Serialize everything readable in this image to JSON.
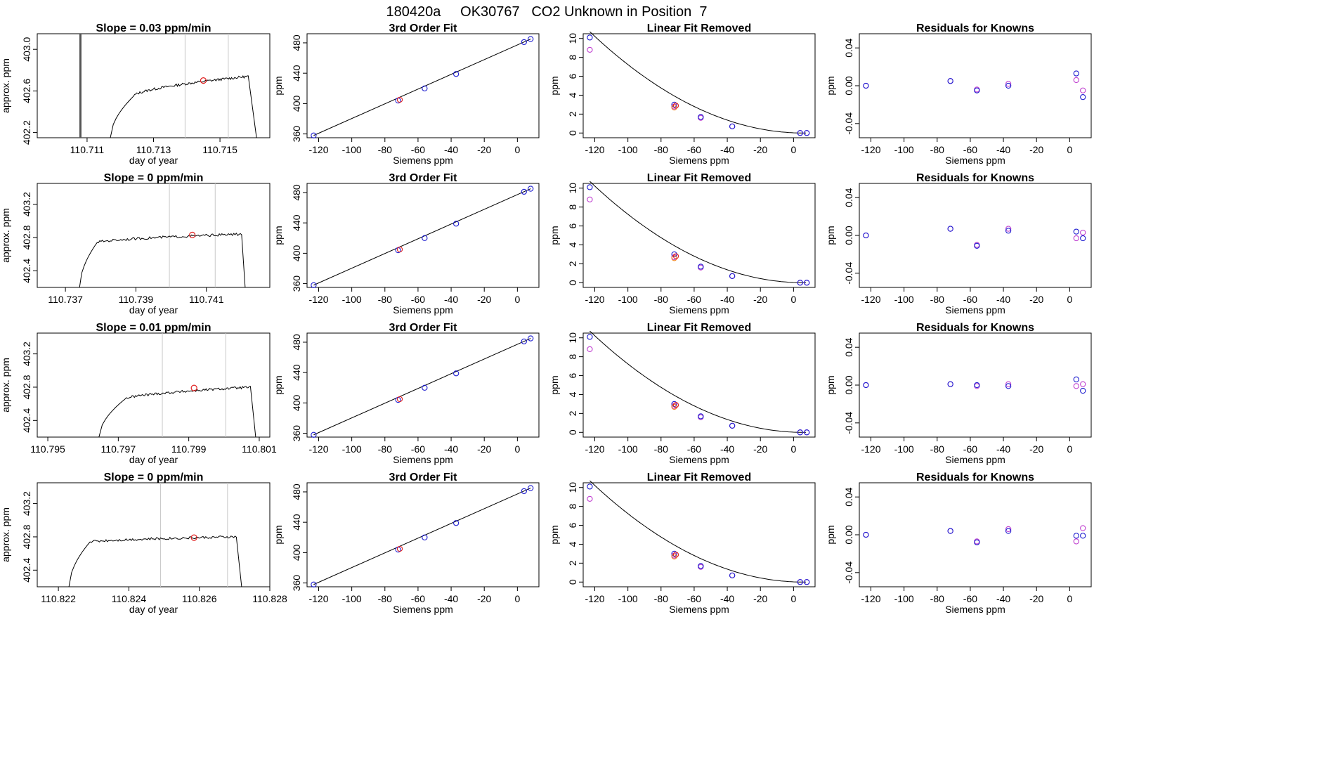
{
  "figure": {
    "title": "180420a     OK30767   CO2 Unknown in Position  7",
    "colors": {
      "trace": "#000000",
      "known_blue": "#1f1fd0",
      "known_magenta": "#c040d0",
      "unknown_red": "#e02020",
      "unknown_orange": "#f08020",
      "vline": "#c8c8c8"
    }
  },
  "chart_data": [
    {
      "type": "line",
      "panel": "r1c1",
      "title": "Slope =  0.03  ppm/min",
      "xlabel": "day of year",
      "ylabel": "approx. ppm",
      "xlim": [
        110.7095,
        110.7165
      ],
      "ylim": [
        402.15,
        403.15
      ],
      "xticks": [
        "110.711",
        "110.713",
        "110.715"
      ],
      "xtick_values": [
        110.711,
        110.713,
        110.715
      ],
      "yticks": [
        "402.2",
        "402.6",
        "403.0"
      ],
      "ytick_values": [
        402.2,
        402.6,
        403.0
      ],
      "vlines": [
        110.71395,
        110.71525
      ],
      "thick_vline": 110.7108,
      "trace": {
        "start": 110.7117,
        "rise_end": 110.7124,
        "plateau_start": 402.55,
        "plateau_end": 402.74,
        "fall_start": 110.71585,
        "end": 110.7161,
        "floor": 402.15
      },
      "marker": {
        "x": 110.7145,
        "y": 402.7
      }
    },
    {
      "type": "scatter",
      "panel": "r1c2",
      "title": "3rd Order Fit",
      "xlabel": "Siemens ppm",
      "ylabel": "ppm",
      "xlim": [
        -127,
        13
      ],
      "ylim": [
        355,
        492
      ],
      "xticks": [
        "-120",
        "-100",
        "-80",
        "-60",
        "-40",
        "-20",
        "0"
      ],
      "xtick_values": [
        -120,
        -100,
        -80,
        -60,
        -40,
        -20,
        0
      ],
      "yticks": [
        "360",
        "400",
        "440",
        "480"
      ],
      "ytick_values": [
        360,
        400,
        440,
        480
      ],
      "fit_line": {
        "x": [
          -123,
          8
        ],
        "y": [
          358,
          485
        ]
      },
      "known_x": [
        -123,
        -72,
        -56,
        -37,
        4,
        8
      ],
      "known_y": [
        358,
        404,
        420,
        439,
        481,
        485
      ],
      "unknown": {
        "x": -71,
        "y": 405
      }
    },
    {
      "type": "scatter",
      "panel": "r1c3",
      "title": "Linear Fit Removed",
      "xlabel": "Siemens ppm",
      "ylabel": "ppm",
      "xlim": [
        -127,
        13
      ],
      "ylim": [
        -0.5,
        10.5
      ],
      "xticks": [
        "-120",
        "-100",
        "-80",
        "-60",
        "-40",
        "-20",
        "0"
      ],
      "xtick_values": [
        -120,
        -100,
        -80,
        -60,
        -40,
        -20,
        0
      ],
      "yticks": [
        "0",
        "2",
        "4",
        "6",
        "8",
        "10"
      ],
      "ytick_values": [
        0,
        2,
        4,
        6,
        8,
        10
      ],
      "curve": {
        "vertex": 6,
        "scale": 0.000644
      },
      "known_blue": {
        "x": [
          -123,
          -72,
          -56,
          -37,
          4,
          8
        ],
        "y": [
          10.1,
          3.0,
          1.7,
          0.7,
          0.0,
          0.0
        ]
      },
      "known_magenta": {
        "x": [
          -123,
          -72,
          -56,
          -37,
          4,
          8
        ],
        "y": [
          8.8,
          2.8,
          1.6,
          0.7,
          0.0,
          0.0
        ]
      },
      "unknown_red": {
        "x": -71,
        "y": 2.9
      },
      "unknown_orange": {
        "x": -72,
        "y": 2.7
      }
    },
    {
      "type": "scatter",
      "panel": "r1c4",
      "title": "Residuals for Knowns",
      "xlabel": "Siemens ppm",
      "ylabel": "ppm",
      "xlim": [
        -127,
        13
      ],
      "ylim": [
        -0.055,
        0.055
      ],
      "xticks": [
        "-120",
        "-100",
        "-80",
        "-60",
        "-40",
        "-20",
        "0"
      ],
      "xtick_values": [
        -120,
        -100,
        -80,
        -60,
        -40,
        -20,
        0
      ],
      "yticks": [
        "-0.04",
        "0.00",
        "0.04"
      ],
      "ytick_values": [
        -0.04,
        0.0,
        0.04
      ],
      "known_blue": {
        "x": [
          -123,
          -72,
          -56,
          -37,
          4,
          8
        ],
        "y": [
          0.0,
          0.005,
          -0.005,
          0.0,
          0.013,
          -0.012
        ]
      },
      "known_magenta": {
        "x": [
          -123,
          -72,
          -56,
          -37,
          4,
          8
        ],
        "y": [
          0.0,
          0.005,
          -0.004,
          0.002,
          0.006,
          -0.005
        ]
      }
    },
    {
      "type": "line",
      "panel": "r2c1",
      "title": "Slope =  0  ppm/min",
      "xlabel": "day of year",
      "ylabel": "approx. ppm",
      "xlim": [
        110.7362,
        110.7428
      ],
      "ylim": [
        402.2,
        403.45
      ],
      "xticks": [
        "110.737",
        "110.739",
        "110.741"
      ],
      "xtick_values": [
        110.737,
        110.739,
        110.741
      ],
      "yticks": [
        "402.4",
        "402.8",
        "403.2"
      ],
      "ytick_values": [
        402.4,
        402.8,
        403.2
      ],
      "vlines": [
        110.73995,
        110.74125
      ],
      "thick_vline": null,
      "trace": {
        "start": 110.7374,
        "rise_end": 110.7379,
        "plateau_start": 402.74,
        "plateau_end": 402.84,
        "fall_start": 110.742,
        "end": 110.7421,
        "floor": 402.2
      },
      "marker": {
        "x": 110.7406,
        "y": 402.83
      }
    },
    {
      "type": "scatter",
      "panel": "r2c2",
      "title": "3rd Order Fit",
      "xlabel": "Siemens ppm",
      "ylabel": "ppm",
      "xlim": [
        -127,
        13
      ],
      "ylim": [
        355,
        492
      ],
      "xticks": [
        "-120",
        "-100",
        "-80",
        "-60",
        "-40",
        "-20",
        "0"
      ],
      "xtick_values": [
        -120,
        -100,
        -80,
        -60,
        -40,
        -20,
        0
      ],
      "yticks": [
        "360",
        "400",
        "440",
        "480"
      ],
      "ytick_values": [
        360,
        400,
        440,
        480
      ],
      "fit_line": {
        "x": [
          -123,
          8
        ],
        "y": [
          358,
          485
        ]
      },
      "known_x": [
        -123,
        -72,
        -56,
        -37,
        4,
        8
      ],
      "known_y": [
        358,
        404,
        420,
        439,
        481,
        485
      ],
      "unknown": {
        "x": -71,
        "y": 405
      }
    },
    {
      "type": "scatter",
      "panel": "r2c3",
      "title": "Linear Fit Removed",
      "xlabel": "Siemens ppm",
      "ylabel": "ppm",
      "xlim": [
        -127,
        13
      ],
      "ylim": [
        -0.5,
        10.5
      ],
      "xticks": [
        "-120",
        "-100",
        "-80",
        "-60",
        "-40",
        "-20",
        "0"
      ],
      "xtick_values": [
        -120,
        -100,
        -80,
        -60,
        -40,
        -20,
        0
      ],
      "yticks": [
        "0",
        "2",
        "4",
        "6",
        "8",
        "10"
      ],
      "ytick_values": [
        0,
        2,
        4,
        6,
        8,
        10
      ],
      "curve": {
        "vertex": 6,
        "scale": 0.000644
      },
      "known_blue": {
        "x": [
          -123,
          -72,
          -56,
          -37,
          4,
          8
        ],
        "y": [
          10.1,
          3.0,
          1.7,
          0.7,
          0.0,
          0.0
        ]
      },
      "known_magenta": {
        "x": [
          -123,
          -72,
          -56,
          -37,
          4,
          8
        ],
        "y": [
          8.8,
          2.7,
          1.6,
          0.7,
          0.0,
          0.0
        ]
      },
      "unknown_red": {
        "x": -71,
        "y": 2.8
      },
      "unknown_orange": {
        "x": -72,
        "y": 2.6
      }
    },
    {
      "type": "scatter",
      "panel": "r2c4",
      "title": "Residuals for Knowns",
      "xlabel": "Siemens ppm",
      "ylabel": "ppm",
      "xlim": [
        -127,
        13
      ],
      "ylim": [
        -0.055,
        0.055
      ],
      "xticks": [
        "-120",
        "-100",
        "-80",
        "-60",
        "-40",
        "-20",
        "0"
      ],
      "xtick_values": [
        -120,
        -100,
        -80,
        -60,
        -40,
        -20,
        0
      ],
      "yticks": [
        "-0.04",
        "0.00",
        "0.04"
      ],
      "ytick_values": [
        -0.04,
        0.0,
        0.04
      ],
      "known_blue": {
        "x": [
          -123,
          -72,
          -56,
          -37,
          4,
          8
        ],
        "y": [
          0.0,
          0.007,
          -0.011,
          0.005,
          0.004,
          -0.003
        ]
      },
      "known_magenta": {
        "x": [
          -123,
          -72,
          -56,
          -37,
          4,
          8
        ],
        "y": [
          0.0,
          0.007,
          -0.01,
          0.007,
          -0.003,
          0.003
        ]
      }
    },
    {
      "type": "line",
      "panel": "r3c1",
      "title": "Slope =  0.01  ppm/min",
      "xlabel": "day of year",
      "ylabel": "approx. ppm",
      "xlim": [
        110.7947,
        110.8013
      ],
      "ylim": [
        402.2,
        403.45
      ],
      "xticks": [
        "110.795",
        "110.797",
        "110.799",
        "110.801"
      ],
      "xtick_values": [
        110.795,
        110.797,
        110.799,
        110.801
      ],
      "yticks": [
        "402.4",
        "402.8",
        "403.2"
      ],
      "ytick_values": [
        402.4,
        402.8,
        403.2
      ],
      "vlines": [
        110.79825,
        110.80005
      ],
      "thick_vline": null,
      "trace": {
        "start": 110.79645,
        "rise_end": 110.7972,
        "plateau_start": 402.66,
        "plateau_end": 402.8,
        "fall_start": 110.80075,
        "end": 110.8009,
        "floor": 402.2
      },
      "marker": {
        "x": 110.79915,
        "y": 402.79
      }
    },
    {
      "type": "scatter",
      "panel": "r3c2",
      "title": "3rd Order Fit",
      "xlabel": "Siemens ppm",
      "ylabel": "ppm",
      "xlim": [
        -127,
        13
      ],
      "ylim": [
        355,
        492
      ],
      "xticks": [
        "-120",
        "-100",
        "-80",
        "-60",
        "-40",
        "-20",
        "0"
      ],
      "xtick_values": [
        -120,
        -100,
        -80,
        -60,
        -40,
        -20,
        0
      ],
      "yticks": [
        "360",
        "400",
        "440",
        "480"
      ],
      "ytick_values": [
        360,
        400,
        440,
        480
      ],
      "fit_line": {
        "x": [
          -123,
          8
        ],
        "y": [
          358,
          485
        ]
      },
      "known_x": [
        -123,
        -72,
        -56,
        -37,
        4,
        8
      ],
      "known_y": [
        358,
        404,
        420,
        439,
        481,
        485
      ],
      "unknown": {
        "x": -71,
        "y": 405
      }
    },
    {
      "type": "scatter",
      "panel": "r3c3",
      "title": "Linear Fit Removed",
      "xlabel": "Siemens ppm",
      "ylabel": "ppm",
      "xlim": [
        -127,
        13
      ],
      "ylim": [
        -0.5,
        10.5
      ],
      "xticks": [
        "-120",
        "-100",
        "-80",
        "-60",
        "-40",
        "-20",
        "0"
      ],
      "xtick_values": [
        -120,
        -100,
        -80,
        -60,
        -40,
        -20,
        0
      ],
      "yticks": [
        "0",
        "2",
        "4",
        "6",
        "8",
        "10"
      ],
      "ytick_values": [
        0,
        2,
        4,
        6,
        8,
        10
      ],
      "curve": {
        "vertex": 6,
        "scale": 0.000644
      },
      "known_blue": {
        "x": [
          -123,
          -72,
          -56,
          -37,
          4,
          8
        ],
        "y": [
          10.1,
          3.0,
          1.7,
          0.7,
          0.0,
          0.0
        ]
      },
      "known_magenta": {
        "x": [
          -123,
          -72,
          -56,
          -37,
          4,
          8
        ],
        "y": [
          8.8,
          2.8,
          1.6,
          0.7,
          0.0,
          0.0
        ]
      },
      "unknown_red": {
        "x": -71,
        "y": 2.9
      },
      "unknown_orange": {
        "x": -72,
        "y": 2.7
      }
    },
    {
      "type": "scatter",
      "panel": "r3c4",
      "title": "Residuals for Knowns",
      "xlabel": "Siemens ppm",
      "ylabel": "ppm",
      "xlim": [
        -127,
        13
      ],
      "ylim": [
        -0.055,
        0.055
      ],
      "xticks": [
        "-120",
        "-100",
        "-80",
        "-60",
        "-40",
        "-20",
        "0"
      ],
      "xtick_values": [
        -120,
        -100,
        -80,
        -60,
        -40,
        -20,
        0
      ],
      "yticks": [
        "-0.04",
        "0.00",
        "0.04"
      ],
      "ytick_values": [
        -0.04,
        0.0,
        0.04
      ],
      "known_blue": {
        "x": [
          -123,
          -72,
          -56,
          -37,
          4,
          8
        ],
        "y": [
          0.0,
          0.001,
          0.0,
          -0.001,
          0.006,
          -0.006
        ]
      },
      "known_magenta": {
        "x": [
          -123,
          -72,
          -56,
          -37,
          4,
          8
        ],
        "y": [
          0.0,
          0.001,
          -0.001,
          0.001,
          -0.001,
          0.001
        ]
      }
    },
    {
      "type": "line",
      "panel": "r4c1",
      "title": "Slope =  0  ppm/min",
      "xlabel": "day of year",
      "ylabel": "approx. ppm",
      "xlim": [
        110.8214,
        110.828
      ],
      "ylim": [
        402.2,
        403.45
      ],
      "xticks": [
        "110.822",
        "110.824",
        "110.826",
        "110.828"
      ],
      "xtick_values": [
        110.822,
        110.824,
        110.826,
        110.828
      ],
      "yticks": [
        "402.4",
        "402.8",
        "403.2"
      ],
      "ytick_values": [
        402.4,
        402.8,
        403.2
      ],
      "vlines": [
        110.8249,
        110.8268
      ],
      "thick_vline": null,
      "trace": {
        "start": 110.8223,
        "rise_end": 110.8229,
        "plateau_start": 402.74,
        "plateau_end": 402.8,
        "fall_start": 110.82705,
        "end": 110.8272,
        "floor": 402.2
      },
      "marker": {
        "x": 110.82585,
        "y": 402.79
      }
    },
    {
      "type": "scatter",
      "panel": "r4c2",
      "title": "3rd Order Fit",
      "xlabel": "Siemens ppm",
      "ylabel": "ppm",
      "xlim": [
        -127,
        13
      ],
      "ylim": [
        355,
        492
      ],
      "xticks": [
        "-120",
        "-100",
        "-80",
        "-60",
        "-40",
        "-20",
        "0"
      ],
      "xtick_values": [
        -120,
        -100,
        -80,
        -60,
        -40,
        -20,
        0
      ],
      "yticks": [
        "360",
        "400",
        "440",
        "480"
      ],
      "ytick_values": [
        360,
        400,
        440,
        480
      ],
      "fit_line": {
        "x": [
          -123,
          8
        ],
        "y": [
          358,
          485
        ]
      },
      "known_x": [
        -123,
        -72,
        -56,
        -37,
        4,
        8
      ],
      "known_y": [
        358,
        404,
        420,
        439,
        481,
        485
      ],
      "unknown": {
        "x": -71,
        "y": 405
      }
    },
    {
      "type": "scatter",
      "panel": "r4c3",
      "title": "Linear Fit Removed",
      "xlabel": "Siemens ppm",
      "ylabel": "ppm",
      "xlim": [
        -127,
        13
      ],
      "ylim": [
        -0.5,
        10.5
      ],
      "xticks": [
        "-120",
        "-100",
        "-80",
        "-60",
        "-40",
        "-20",
        "0"
      ],
      "xtick_values": [
        -120,
        -100,
        -80,
        -60,
        -40,
        -20,
        0
      ],
      "yticks": [
        "0",
        "2",
        "4",
        "6",
        "8",
        "10"
      ],
      "ytick_values": [
        0,
        2,
        4,
        6,
        8,
        10
      ],
      "curve": {
        "vertex": 6,
        "scale": 0.000644
      },
      "known_blue": {
        "x": [
          -123,
          -72,
          -56,
          -37,
          4,
          8
        ],
        "y": [
          10.1,
          3.0,
          1.7,
          0.7,
          0.0,
          0.0
        ]
      },
      "known_magenta": {
        "x": [
          -123,
          -72,
          -56,
          -37,
          4,
          8
        ],
        "y": [
          8.8,
          2.8,
          1.6,
          0.7,
          0.0,
          0.0
        ]
      },
      "unknown_red": {
        "x": -71,
        "y": 2.9
      },
      "unknown_orange": {
        "x": -72,
        "y": 2.7
      }
    },
    {
      "type": "scatter",
      "panel": "r4c4",
      "title": "Residuals for Knowns",
      "xlabel": "Siemens ppm",
      "ylabel": "ppm",
      "xlim": [
        -127,
        13
      ],
      "ylim": [
        -0.055,
        0.055
      ],
      "xticks": [
        "-120",
        "-100",
        "-80",
        "-60",
        "-40",
        "-20",
        "0"
      ],
      "xtick_values": [
        -120,
        -100,
        -80,
        -60,
        -40,
        -20,
        0
      ],
      "yticks": [
        "-0.04",
        "0.00",
        "0.04"
      ],
      "ytick_values": [
        -0.04,
        0.0,
        0.04
      ],
      "known_blue": {
        "x": [
          -123,
          -72,
          -56,
          -37,
          4,
          8
        ],
        "y": [
          0.0,
          0.004,
          -0.008,
          0.004,
          -0.001,
          -0.001
        ]
      },
      "known_magenta": {
        "x": [
          -123,
          -72,
          -56,
          -37,
          4,
          8
        ],
        "y": [
          0.0,
          0.004,
          -0.007,
          0.006,
          -0.007,
          0.007
        ]
      }
    }
  ]
}
